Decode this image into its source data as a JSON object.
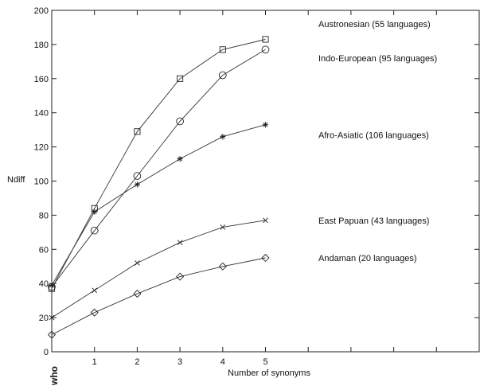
{
  "chart_data": {
    "type": "line",
    "xlabel": "Number of synonyms",
    "ylabel": "Ndiff",
    "corner_label": "who",
    "xlim": [
      0,
      10
    ],
    "ylim": [
      0,
      200
    ],
    "x_ticks": [
      1,
      2,
      3,
      4,
      5
    ],
    "x_tick_labels": [
      "1",
      "2",
      "3",
      "4",
      "5"
    ],
    "y_ticks": [
      0,
      20,
      40,
      60,
      80,
      100,
      120,
      140,
      160,
      180,
      200
    ],
    "y_tick_labels": [
      "0",
      "20",
      "40",
      "60",
      "80",
      "100",
      "120",
      "140",
      "160",
      "180",
      "200"
    ],
    "grid": false,
    "x": [
      0,
      1,
      2,
      3,
      4,
      5
    ],
    "series": [
      {
        "name": "Austronesian (55 languages)",
        "marker": "square",
        "values": [
          37,
          84,
          129,
          160,
          177,
          183
        ],
        "label_y": 192
      },
      {
        "name": "Indo-European (95 languages)",
        "marker": "circle",
        "values": [
          38,
          71,
          103,
          135,
          162,
          177
        ],
        "label_y": 172
      },
      {
        "name": "Afro-Asiatic (106 languages)",
        "marker": "star",
        "values": [
          39,
          82,
          98,
          113,
          126,
          133
        ],
        "label_y": 127
      },
      {
        "name": "East Papuan (43 languages)",
        "marker": "x",
        "values": [
          20,
          36,
          52,
          64,
          73,
          77
        ],
        "label_y": 77
      },
      {
        "name": "Andaman (20 languages)",
        "marker": "diamond",
        "values": [
          10,
          23,
          34,
          44,
          50,
          55
        ],
        "label_y": 55
      }
    ]
  }
}
